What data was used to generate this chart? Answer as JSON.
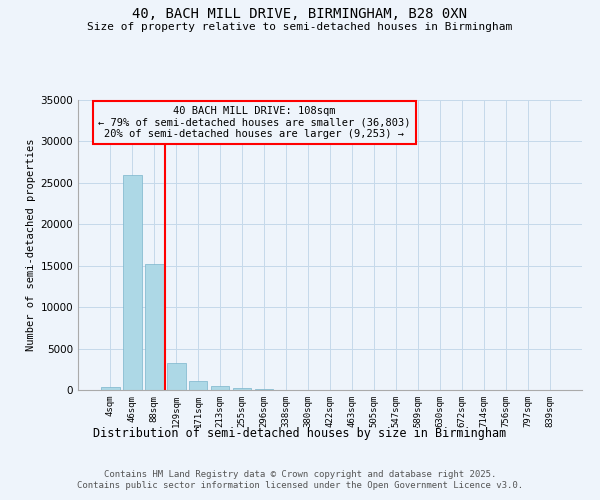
{
  "title1": "40, BACH MILL DRIVE, BIRMINGHAM, B28 0XN",
  "title2": "Size of property relative to semi-detached houses in Birmingham",
  "xlabel": "Distribution of semi-detached houses by size in Birmingham",
  "ylabel": "Number of semi-detached properties",
  "annotation_title": "40 BACH MILL DRIVE: 108sqm",
  "annotation_line1": "← 79% of semi-detached houses are smaller (36,803)",
  "annotation_line2": "20% of semi-detached houses are larger (9,253) →",
  "footer1": "Contains HM Land Registry data © Crown copyright and database right 2025.",
  "footer2": "Contains public sector information licensed under the Open Government Licence v3.0.",
  "bar_labels": [
    "4sqm",
    "46sqm",
    "88sqm",
    "129sqm",
    "171sqm",
    "213sqm",
    "255sqm",
    "296sqm",
    "338sqm",
    "380sqm",
    "422sqm",
    "463sqm",
    "505sqm",
    "547sqm",
    "589sqm",
    "630sqm",
    "672sqm",
    "714sqm",
    "756sqm",
    "797sqm",
    "839sqm"
  ],
  "bar_values": [
    400,
    26000,
    15200,
    3200,
    1100,
    450,
    300,
    150,
    0,
    0,
    0,
    0,
    0,
    0,
    0,
    0,
    0,
    0,
    0,
    0,
    0
  ],
  "bar_color": "#add8e6",
  "bar_edge_color": "#7ab5cc",
  "vline_color": "red",
  "background_color": "#eef4fb",
  "grid_color": "#c5d9ea",
  "ylim": [
    0,
    35000
  ],
  "yticks": [
    0,
    5000,
    10000,
    15000,
    20000,
    25000,
    30000,
    35000
  ]
}
